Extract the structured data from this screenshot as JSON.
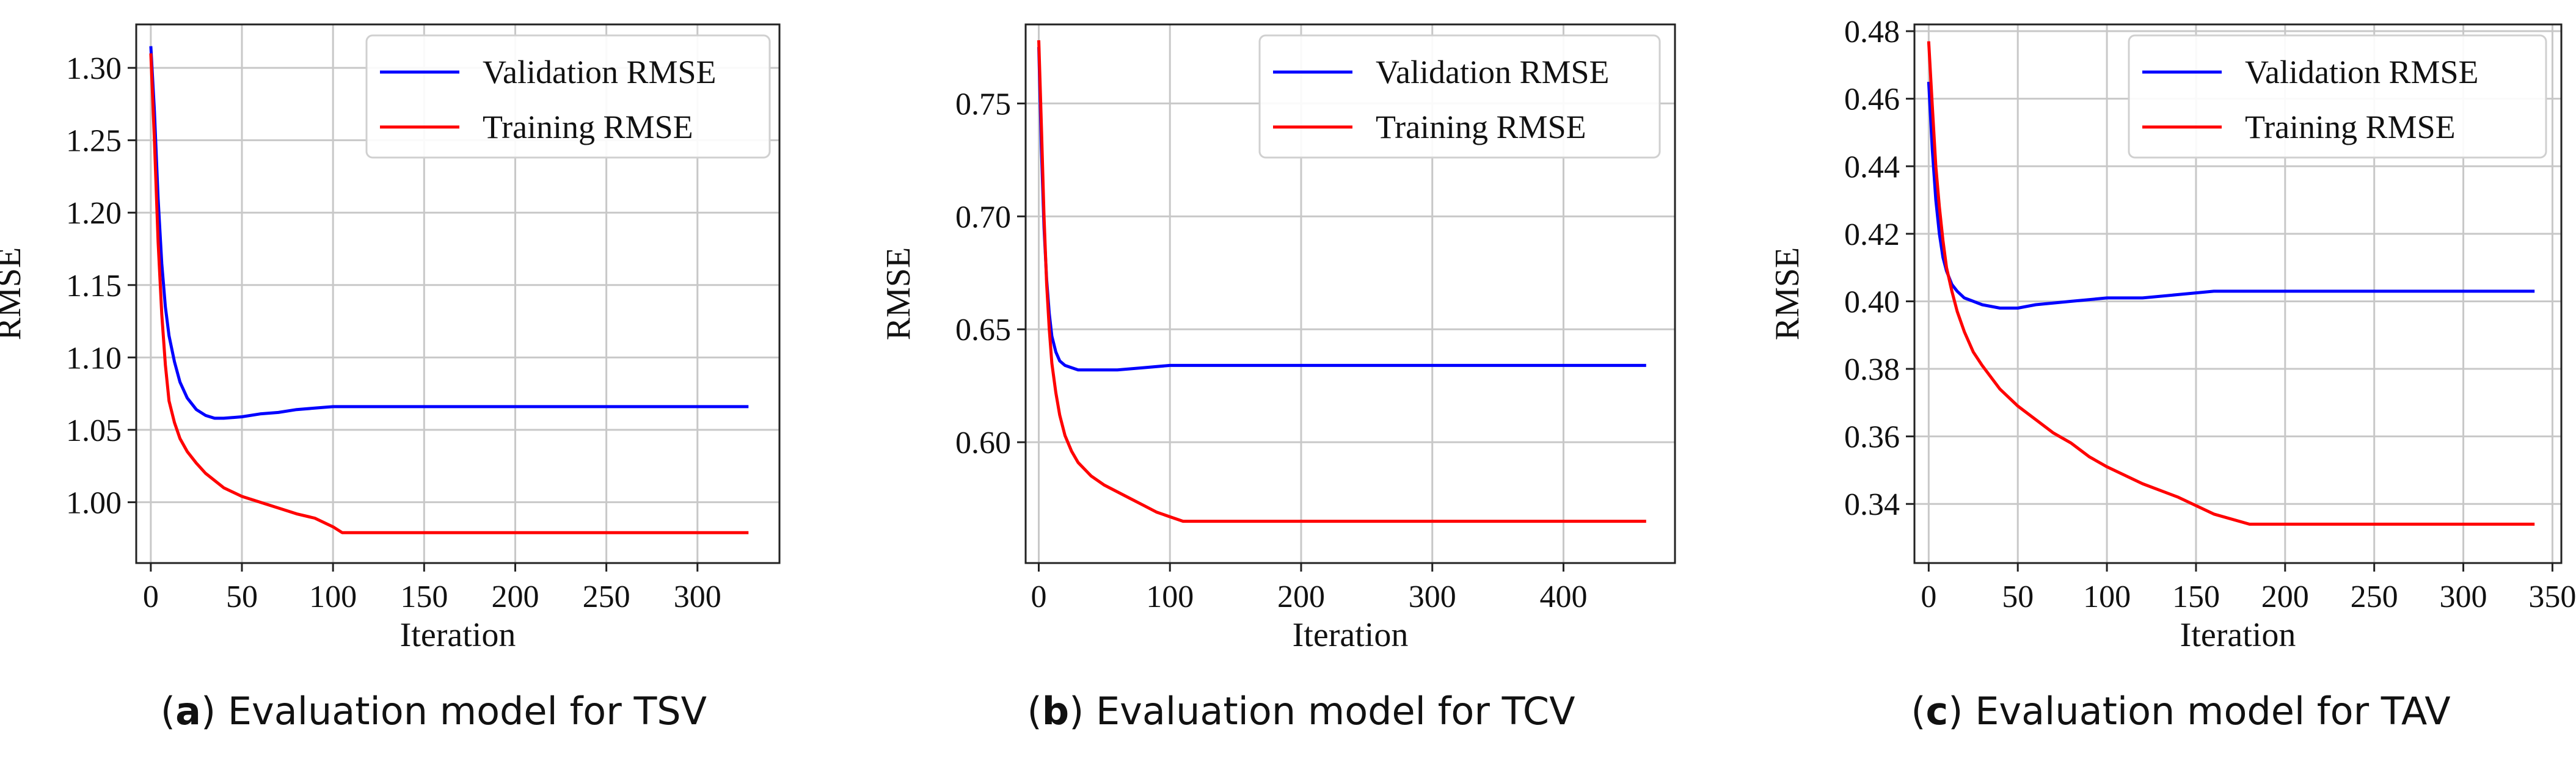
{
  "charts": [
    {
      "caption_letter": "a",
      "caption_text": "Evaluation model for TSV",
      "chart_data": {
        "type": "line",
        "xlabel": "Iteration",
        "ylabel": "RMSE",
        "xlim": [
          -8,
          345
        ],
        "ylim": [
          0.958,
          1.33
        ],
        "xticks": [
          0,
          50,
          100,
          150,
          200,
          250,
          300
        ],
        "yticks": [
          1.0,
          1.05,
          1.1,
          1.15,
          1.2,
          1.25,
          1.3
        ],
        "ytick_labels": [
          "1.00",
          "1.05",
          "1.10",
          "1.15",
          "1.20",
          "1.25",
          "1.30"
        ],
        "grid": true,
        "legend": "top-right",
        "series": [
          {
            "name": "Validation RMSE",
            "color": "#0000ff",
            "x": [
              0,
              2,
              4,
              6,
              8,
              10,
              13,
              16,
              20,
              25,
              30,
              35,
              40,
              50,
              60,
              70,
              80,
              90,
              100,
              105,
              150,
              200,
              250,
              300,
              328
            ],
            "y": [
              1.315,
              1.27,
              1.21,
              1.165,
              1.135,
              1.115,
              1.097,
              1.083,
              1.072,
              1.064,
              1.06,
              1.058,
              1.058,
              1.059,
              1.061,
              1.062,
              1.064,
              1.065,
              1.066,
              1.066,
              1.066,
              1.066,
              1.066,
              1.066,
              1.066
            ]
          },
          {
            "name": "Training RMSE",
            "color": "#ff0000",
            "x": [
              0,
              2,
              4,
              6,
              8,
              10,
              13,
              16,
              20,
              25,
              30,
              40,
              50,
              60,
              70,
              80,
              90,
              100,
              105,
              150,
              200,
              250,
              300,
              328
            ],
            "y": [
              1.31,
              1.25,
              1.18,
              1.13,
              1.095,
              1.07,
              1.055,
              1.044,
              1.035,
              1.027,
              1.02,
              1.01,
              1.004,
              1.0,
              0.996,
              0.992,
              0.989,
              0.983,
              0.979,
              0.979,
              0.979,
              0.979,
              0.979,
              0.979
            ]
          }
        ]
      }
    },
    {
      "caption_letter": "b",
      "caption_text": "Evaluation model for TCV",
      "chart_data": {
        "type": "line",
        "xlabel": "Iteration",
        "ylabel": "RMSE",
        "xlim": [
          -10,
          485
        ],
        "ylim": [
          0.5465,
          0.785
        ],
        "xticks": [
          0,
          100,
          200,
          300,
          400
        ],
        "yticks": [
          0.6,
          0.65,
          0.7,
          0.75
        ],
        "ytick_labels": [
          "0.60",
          "0.65",
          "0.70",
          "0.75"
        ],
        "grid": true,
        "legend": "top-right",
        "series": [
          {
            "name": "Validation RMSE",
            "color": "#0000ff",
            "x": [
              0,
              2,
              4,
              6,
              8,
              10,
              13,
              16,
              20,
              25,
              30,
              40,
              60,
              80,
              100,
              120,
              200,
              300,
              400,
              463
            ],
            "y": [
              0.775,
              0.73,
              0.695,
              0.672,
              0.657,
              0.647,
              0.64,
              0.636,
              0.634,
              0.633,
              0.632,
              0.632,
              0.632,
              0.633,
              0.634,
              0.634,
              0.634,
              0.634,
              0.634,
              0.634
            ]
          },
          {
            "name": "Training RMSE",
            "color": "#ff0000",
            "x": [
              0,
              2,
              4,
              6,
              8,
              10,
              13,
              16,
              20,
              25,
              30,
              40,
              50,
              60,
              70,
              80,
              90,
              100,
              110,
              120,
              200,
              300,
              400,
              463
            ],
            "y": [
              0.778,
              0.74,
              0.7,
              0.67,
              0.65,
              0.635,
              0.622,
              0.612,
              0.603,
              0.596,
              0.591,
              0.585,
              0.581,
              0.578,
              0.575,
              0.572,
              0.569,
              0.567,
              0.565,
              0.565,
              0.565,
              0.565,
              0.565,
              0.565
            ]
          }
        ]
      }
    },
    {
      "caption_letter": "c",
      "caption_text": "Evaluation model for TAV",
      "chart_data": {
        "type": "line",
        "xlabel": "Iteration",
        "ylabel": "RMSE",
        "xlim": [
          -8,
          355
        ],
        "ylim": [
          0.3225,
          0.482
        ],
        "xticks": [
          0,
          50,
          100,
          150,
          200,
          250,
          300,
          350
        ],
        "yticks": [
          0.34,
          0.36,
          0.38,
          0.4,
          0.42,
          0.44,
          0.46,
          0.48
        ],
        "ytick_labels": [
          "0.34",
          "0.36",
          "0.38",
          "0.40",
          "0.42",
          "0.44",
          "0.46",
          "0.48"
        ],
        "grid": true,
        "legend": "top-right",
        "series": [
          {
            "name": "Validation RMSE",
            "color": "#0000ff",
            "x": [
              0,
              2,
              4,
              6,
              8,
              10,
              13,
              16,
              20,
              25,
              30,
              40,
              50,
              60,
              80,
              100,
              120,
              140,
              160,
              200,
              250,
              300,
              340
            ],
            "y": [
              0.465,
              0.445,
              0.43,
              0.42,
              0.413,
              0.409,
              0.405,
              0.403,
              0.401,
              0.4,
              0.399,
              0.398,
              0.398,
              0.399,
              0.4,
              0.401,
              0.401,
              0.402,
              0.403,
              0.403,
              0.403,
              0.403,
              0.403
            ]
          },
          {
            "name": "Training RMSE",
            "color": "#ff0000",
            "x": [
              0,
              2,
              4,
              6,
              8,
              10,
              13,
              16,
              20,
              25,
              30,
              40,
              50,
              60,
              70,
              80,
              90,
              100,
              120,
              140,
              160,
              180,
              200,
              250,
              300,
              340
            ],
            "y": [
              0.477,
              0.458,
              0.44,
              0.428,
              0.418,
              0.41,
              0.403,
              0.397,
              0.391,
              0.385,
              0.381,
              0.374,
              0.369,
              0.365,
              0.361,
              0.358,
              0.354,
              0.351,
              0.346,
              0.342,
              0.337,
              0.334,
              0.334,
              0.334,
              0.334,
              0.334
            ]
          }
        ]
      }
    }
  ]
}
